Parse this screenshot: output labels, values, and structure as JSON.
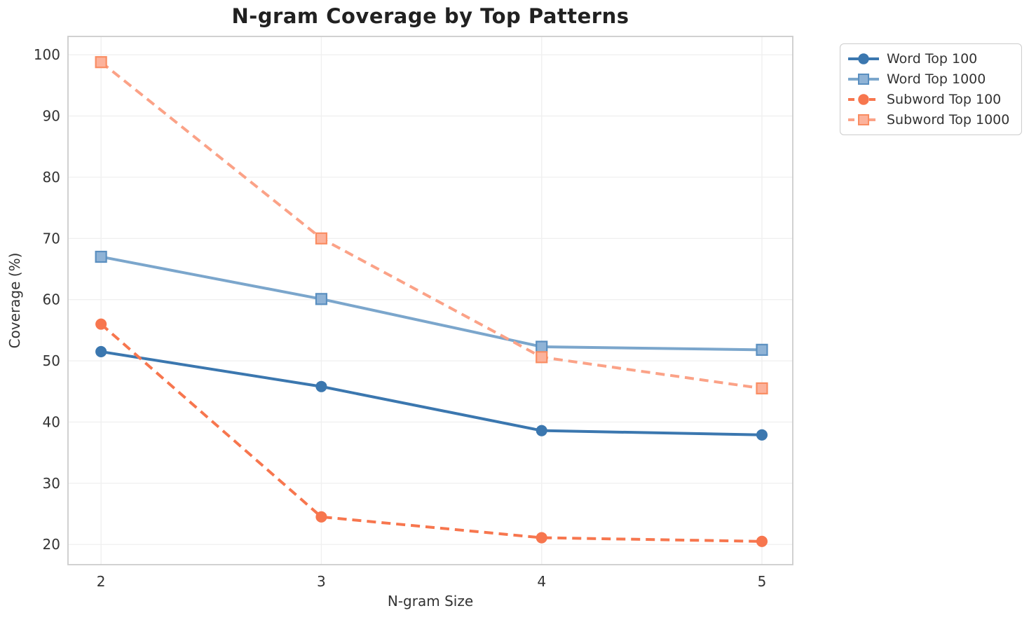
{
  "chart_data": {
    "type": "line",
    "title": "N-gram Coverage by Top Patterns",
    "xlabel": "N-gram Size",
    "ylabel": "Coverage (%)",
    "x": [
      2,
      3,
      4,
      5
    ],
    "xticks": [
      "2",
      "3",
      "4",
      "5"
    ],
    "yticks": [
      20,
      30,
      40,
      50,
      60,
      70,
      80,
      90,
      100
    ],
    "xlim": [
      1.85,
      5.14
    ],
    "ylim": [
      16.7,
      103.0
    ],
    "grid": true,
    "legend_position": "outside-upper-right",
    "series": [
      {
        "name": "Word Top 100",
        "values": [
          51.5,
          45.8,
          38.6,
          37.9
        ],
        "color": "#3b77af",
        "marker_face": "#3b77af",
        "marker_edge": "#3b77af",
        "line_style": "solid",
        "marker": "circle"
      },
      {
        "name": "Word Top 1000",
        "values": [
          67.0,
          60.1,
          52.3,
          51.8
        ],
        "color": "#7ba6cc",
        "marker_face": "#8fb3d6",
        "marker_edge": "#5a8fc0",
        "line_style": "solid",
        "marker": "square"
      },
      {
        "name": "Subword Top 100",
        "values": [
          56.0,
          24.5,
          21.1,
          20.5
        ],
        "color": "#f7764e",
        "marker_face": "#f7764e",
        "marker_edge": "#f7764e",
        "line_style": "dashed",
        "marker": "circle"
      },
      {
        "name": "Subword Top 1000",
        "values": [
          98.8,
          70.0,
          50.6,
          45.5
        ],
        "color": "#fba287",
        "marker_face": "#fcb29b",
        "marker_edge": "#f98d63",
        "line_style": "dashed",
        "marker": "square"
      }
    ],
    "style": {
      "gridline_color": "#f0f0f0",
      "spine_color": "#cccccc",
      "tick_label_color": "#333333",
      "title_color": "#212121",
      "background": "#ffffff"
    }
  }
}
